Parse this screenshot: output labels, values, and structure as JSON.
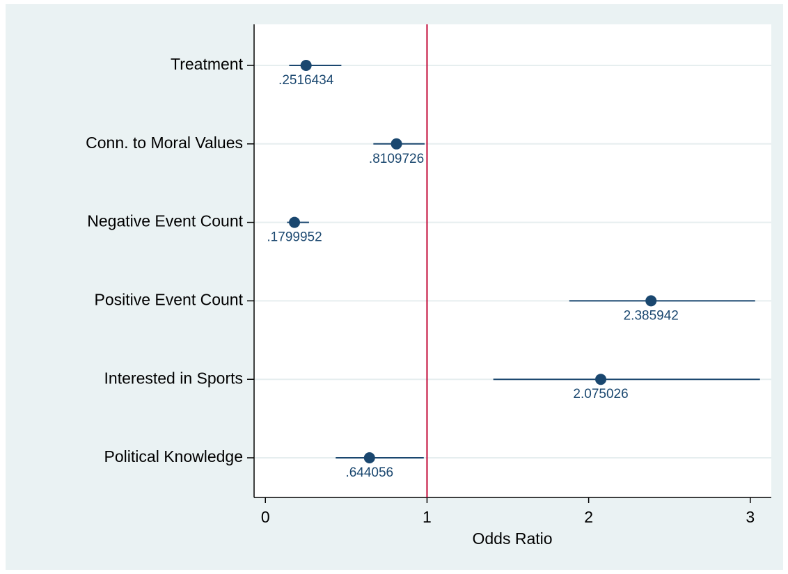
{
  "chart_data": {
    "type": "coefplot",
    "x_label": "Odds Ratio",
    "categories": [
      "Treatment",
      "Conn. to Moral Values",
      "Negative Event Count",
      "Positive Event Count",
      "Interested in Sports",
      "Political Knowledge"
    ],
    "values": [
      0.2516434,
      0.8109726,
      0.1799952,
      2.385942,
      2.075026,
      0.644056
    ],
    "value_labels": [
      ".2516434",
      ".8109726",
      ".1799952",
      "2.385942",
      "2.075026",
      ".644056"
    ],
    "lower": [
      0.147,
      0.668,
      0.134,
      1.88,
      1.41,
      0.435
    ],
    "upper": [
      0.47,
      0.985,
      0.27,
      3.03,
      3.06,
      0.98
    ],
    "color": "#1a476f",
    "reference_line": 1,
    "reference_color": "#c10534",
    "xlim": [
      -0.07,
      3.13
    ],
    "xticks": [
      0,
      1,
      2,
      3
    ],
    "grid": true
  }
}
